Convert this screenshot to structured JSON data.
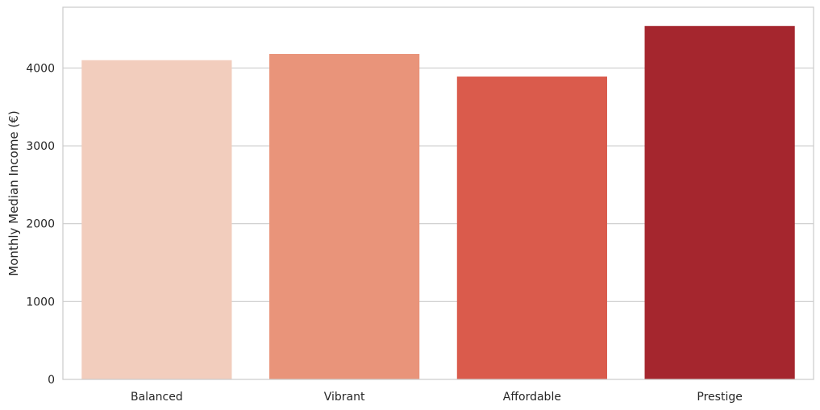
{
  "chart_data": {
    "type": "bar",
    "title": "",
    "xlabel": "",
    "ylabel": "Monthly Median Income (€)",
    "categories": [
      "Balanced",
      "Vibrant",
      "Affordable",
      "Prestige"
    ],
    "values": [
      4100,
      4180,
      3890,
      4540
    ],
    "colors": [
      "#f2cdbd",
      "#e9947a",
      "#da5b4c",
      "#a5262e"
    ],
    "ylim": [
      0,
      4780
    ],
    "yticks": [
      0,
      1000,
      2000,
      3000,
      4000
    ],
    "grid": "horizontal",
    "legend": "none"
  }
}
